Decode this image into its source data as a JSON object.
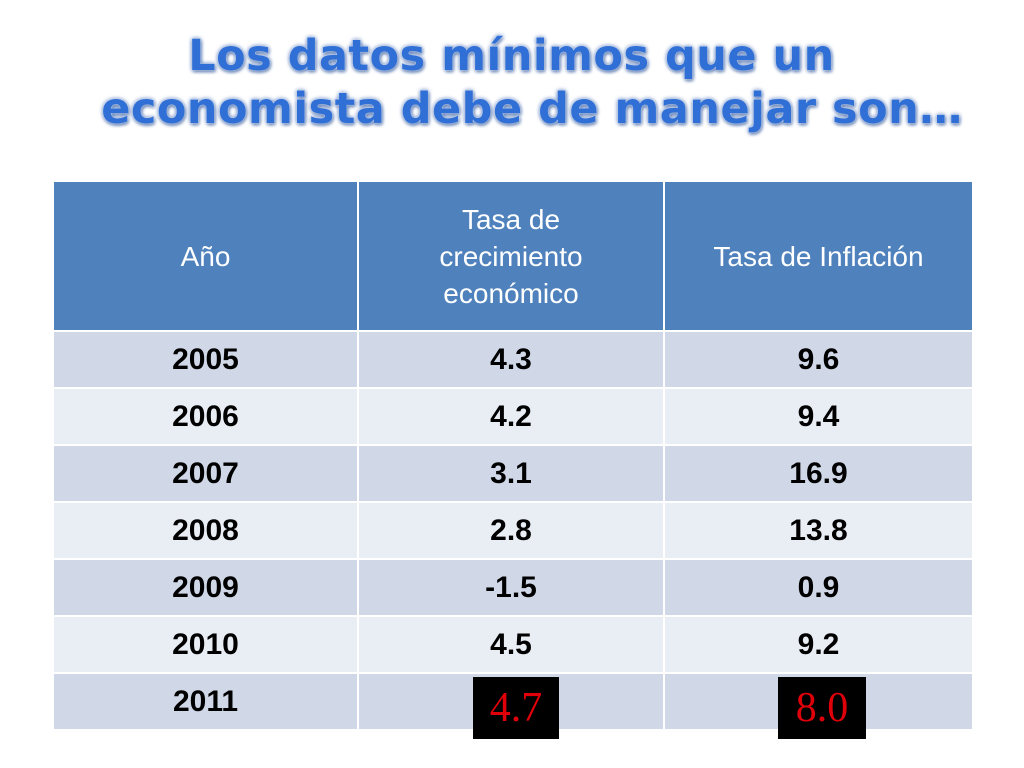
{
  "slide": {
    "title_line1": "Los datos mínimos que un",
    "title_line2": "economista debe de manejar son…"
  },
  "table": {
    "headers": {
      "year": "Año",
      "growth": "Tasa de crecimiento económico",
      "inflation": "Tasa de Inflación"
    },
    "rows": [
      {
        "year": "2005",
        "growth": "4.3",
        "inflation": "9.6"
      },
      {
        "year": "2006",
        "growth": "4.2",
        "inflation": "9.4"
      },
      {
        "year": "2007",
        "growth": "3.1",
        "inflation": "16.9"
      },
      {
        "year": "2008",
        "growth": "2.8",
        "inflation": "13.8"
      },
      {
        "year": "2009",
        "growth": "-1.5",
        "inflation": "0.9"
      },
      {
        "year": "2010",
        "growth": "4.5",
        "inflation": "9.2"
      },
      {
        "year": "2011",
        "growth": "",
        "inflation": ""
      }
    ],
    "highlight": {
      "growth_2011": "4.7",
      "inflation_2011": "8.0"
    }
  },
  "colors": {
    "title": "#2f6fd6",
    "header_bg": "#4f81bd",
    "row_odd": "#d0d8e8",
    "row_even": "#e9edf4",
    "highlight_bg": "#000000",
    "highlight_text": "#e0000a"
  }
}
